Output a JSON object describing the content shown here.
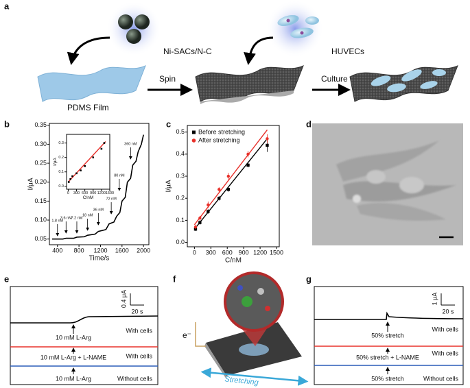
{
  "panel_labels": [
    "a",
    "b",
    "c",
    "d",
    "e",
    "f",
    "g"
  ],
  "panel_a": {
    "material": "Ni-SACs/N-C",
    "cells": "HUVECs",
    "film": "PDMS Film",
    "step_1": "Spin",
    "step_2": "Culture"
  },
  "chart_data": [
    {
      "type": "line",
      "xlabel": "Time/s",
      "ylabel": "I/μA",
      "color": "#000000",
      "x": [
        300,
        500,
        560,
        700,
        760,
        900,
        960,
        1100,
        1160,
        1300,
        1360,
        1450,
        1500,
        1560,
        1600,
        1660,
        1700,
        1760,
        1800,
        1860,
        1900,
        1960,
        2000
      ],
      "values": [
        0.05,
        0.05,
        0.052,
        0.052,
        0.055,
        0.056,
        0.06,
        0.063,
        0.07,
        0.075,
        0.09,
        0.095,
        0.11,
        0.12,
        0.15,
        0.16,
        0.2,
        0.21,
        0.245,
        0.255,
        0.28,
        0.3,
        0.325
      ],
      "xlim": [
        250,
        2100
      ],
      "ylim": [
        0.035,
        0.355
      ],
      "xticks": [
        400,
        800,
        1200,
        1600,
        2000
      ],
      "yticks": [
        0.05,
        {
          "value": 0.1,
          "label": "0.10"
        },
        0.15,
        {
          "value": 0.2,
          "label": "0.20"
        },
        0.25,
        {
          "value": 0.3,
          "label": "0.30"
        },
        0.35
      ],
      "annotations": [
        "1.8 nM",
        "3.6 nM",
        "7.2 nM",
        "18 nM",
        "36 nM",
        "72 nM",
        "80 nM",
        "360 nM"
      ]
    },
    {
      "type": "scatter",
      "xlabel": "C/nM",
      "ylabel": "I/μA",
      "series": [
        {
          "color": "#000000",
          "x": [
            20,
            80,
            150,
            300,
            450,
            600,
            900,
            1200,
            1300
          ],
          "values": [
            0.03,
            0.05,
            0.07,
            0.09,
            0.11,
            0.14,
            0.2,
            0.26,
            0.3
          ],
          "fit": {
            "color": "#e8302a",
            "x": [
              0,
              1350
            ],
            "values": [
              0.03,
              0.31
            ]
          }
        }
      ],
      "xlim": [
        -60,
        1500
      ],
      "ylim": [
        -0.02,
        0.36
      ],
      "xticks": [
        0,
        300,
        600,
        900,
        1200,
        1500
      ],
      "yticks": [
        {
          "value": 0,
          "label": "0.0"
        },
        0.1,
        0.2,
        0.3
      ]
    },
    {
      "type": "scatter",
      "xlabel": "C/nM",
      "ylabel": "I/μA",
      "series": [
        {
          "name": "Before stretching",
          "color": "#000000",
          "x": [
            20,
            100,
            250,
            450,
            620,
            980,
            1330
          ],
          "values": [
            0.06,
            0.09,
            0.14,
            0.2,
            0.24,
            0.35,
            0.44
          ],
          "errors": [
            0.008,
            0.01,
            0.01,
            0.01,
            0.01,
            0.01,
            0.03
          ],
          "fit": {
            "color": "#000000",
            "x": [
              0,
              1330
            ],
            "values": [
              0.06,
              0.47
            ]
          }
        },
        {
          "name": "After stretching",
          "color": "#e8302a",
          "x": [
            20,
            100,
            250,
            450,
            620,
            980,
            1330
          ],
          "values": [
            0.07,
            0.11,
            0.17,
            0.24,
            0.3,
            0.4,
            0.47
          ],
          "errors": [
            0.01,
            0.01,
            0.015,
            0.01,
            0.015,
            0.015,
            0.02
          ],
          "fit": {
            "color": "#e8302a",
            "x": [
              0,
              1330
            ],
            "values": [
              0.08,
              0.51
            ]
          }
        }
      ],
      "xlim": [
        -130,
        1550
      ],
      "ylim": [
        -0.02,
        0.53
      ],
      "xticks": [
        0,
        300,
        600,
        900,
        1200,
        1500
      ],
      "yticks": [
        {
          "value": 0,
          "label": "0.0"
        },
        0.1,
        0.2,
        0.3,
        0.4,
        0.5
      ]
    }
  ],
  "panel_e": {
    "scale_y": "0.4 μA",
    "scale_x": "20 s",
    "traces": [
      {
        "stimulus": "10 mM L-Arg",
        "condition": "With cells"
      },
      {
        "stimulus": "10 mM L-Arg + L-NAME",
        "condition": "With cells"
      },
      {
        "stimulus": "10 mM L-Arg",
        "condition": "Without cells"
      }
    ]
  },
  "panel_f": {
    "electron": "e⁻",
    "motion": "Stretching"
  },
  "panel_g": {
    "scale_y": "1 μA",
    "scale_x": "20 s",
    "traces": [
      {
        "stimulus": "50% stretch",
        "condition": "With cells"
      },
      {
        "stimulus": "50% stretch + L-NAME",
        "condition": "With cells"
      },
      {
        "stimulus": "50% stretch",
        "condition": "Without cells"
      }
    ]
  }
}
